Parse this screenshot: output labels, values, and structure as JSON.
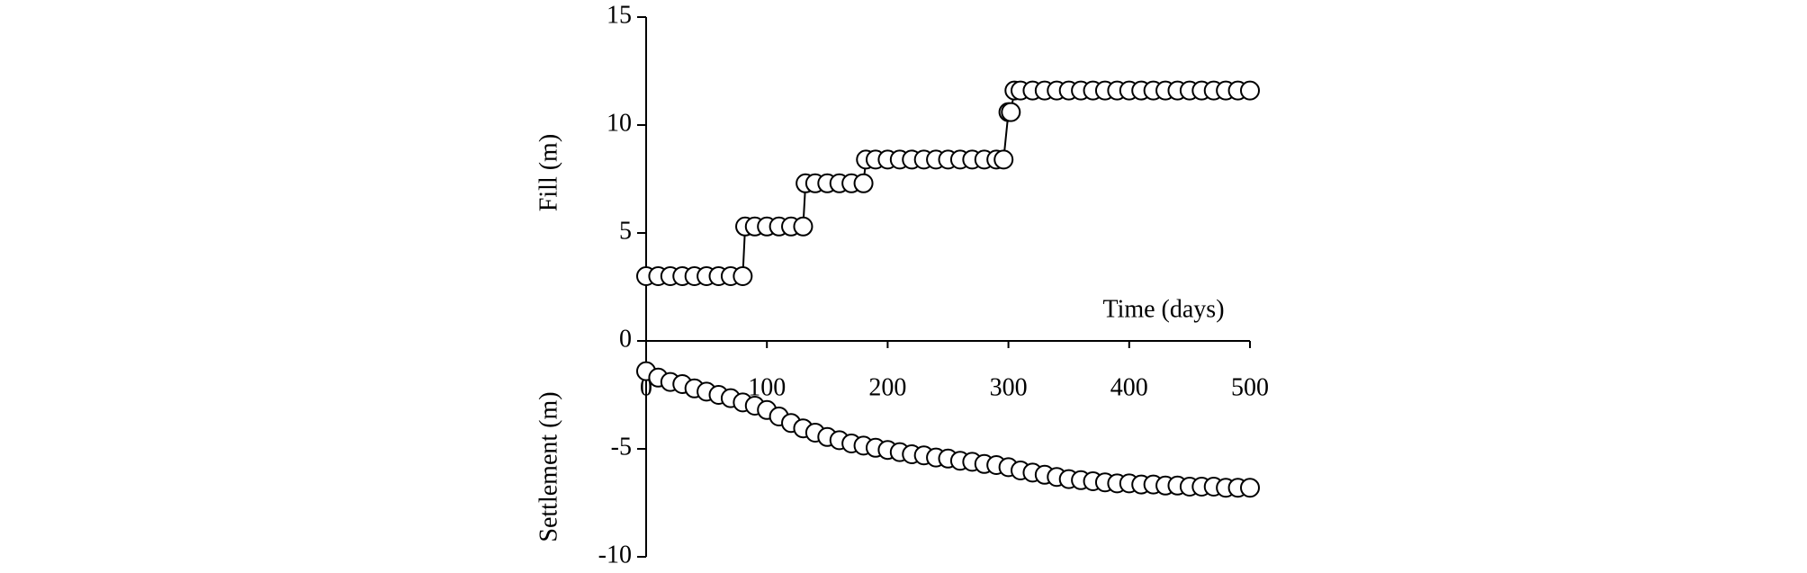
{
  "chart_data": {
    "type": "scatter",
    "xlabel": "Time (days)",
    "ylabels": [
      "Fill (m)",
      "Settlement (m)"
    ],
    "xlim": [
      0,
      500
    ],
    "xticks": [
      0,
      100,
      200,
      300,
      400,
      500
    ],
    "ylim": [
      -10,
      15
    ],
    "yticks": [
      -10,
      -5,
      0,
      5,
      10,
      15
    ],
    "grid": false,
    "series": [
      {
        "color": "#ffffff",
        "line": true,
        "x": [
          0,
          10,
          20,
          30,
          40,
          50,
          60,
          70,
          80,
          82,
          90,
          100,
          110,
          120,
          130,
          132,
          140,
          150,
          160,
          170,
          180,
          182,
          190,
          200,
          210,
          220,
          230,
          240,
          250,
          260,
          270,
          280,
          290,
          296,
          300,
          302,
          305,
          310,
          320,
          330,
          340,
          350,
          360,
          370,
          380,
          390,
          400,
          410,
          420,
          430,
          440,
          450,
          460,
          470,
          480,
          490,
          500
        ],
        "values": [
          3.0,
          3.0,
          3.0,
          3.0,
          3.0,
          3.0,
          3.0,
          3.0,
          3.0,
          5.3,
          5.3,
          5.3,
          5.3,
          5.3,
          5.3,
          7.3,
          7.3,
          7.3,
          7.3,
          7.3,
          7.3,
          8.4,
          8.4,
          8.4,
          8.4,
          8.4,
          8.4,
          8.4,
          8.4,
          8.4,
          8.4,
          8.4,
          8.4,
          8.4,
          10.6,
          10.6,
          11.6,
          11.6,
          11.6,
          11.6,
          11.6,
          11.6,
          11.6,
          11.6,
          11.6,
          11.6,
          11.6,
          11.6,
          11.6,
          11.6,
          11.6,
          11.6,
          11.6,
          11.6,
          11.6,
          11.6,
          11.6
        ]
      },
      {
        "color": "#ffffff",
        "line": false,
        "x": [
          0,
          10,
          20,
          30,
          40,
          50,
          60,
          70,
          80,
          90,
          100,
          110,
          120,
          130,
          140,
          150,
          160,
          170,
          180,
          190,
          200,
          210,
          220,
          230,
          240,
          250,
          260,
          270,
          280,
          290,
          300,
          310,
          320,
          330,
          340,
          350,
          360,
          370,
          380,
          390,
          400,
          410,
          420,
          430,
          440,
          450,
          460,
          470,
          480,
          490,
          500
        ],
        "values": [
          -1.4,
          -1.7,
          -1.9,
          -2.0,
          -2.2,
          -2.35,
          -2.5,
          -2.65,
          -2.85,
          -3.0,
          -3.2,
          -3.5,
          -3.8,
          -4.05,
          -4.25,
          -4.45,
          -4.6,
          -4.75,
          -4.85,
          -4.95,
          -5.05,
          -5.15,
          -5.25,
          -5.3,
          -5.4,
          -5.45,
          -5.55,
          -5.6,
          -5.7,
          -5.75,
          -5.85,
          -6.0,
          -6.1,
          -6.2,
          -6.3,
          -6.4,
          -6.45,
          -6.5,
          -6.55,
          -6.6,
          -6.6,
          -6.65,
          -6.65,
          -6.7,
          -6.7,
          -6.75,
          -6.75,
          -6.75,
          -6.8,
          -6.8,
          -6.8
        ]
      }
    ]
  }
}
